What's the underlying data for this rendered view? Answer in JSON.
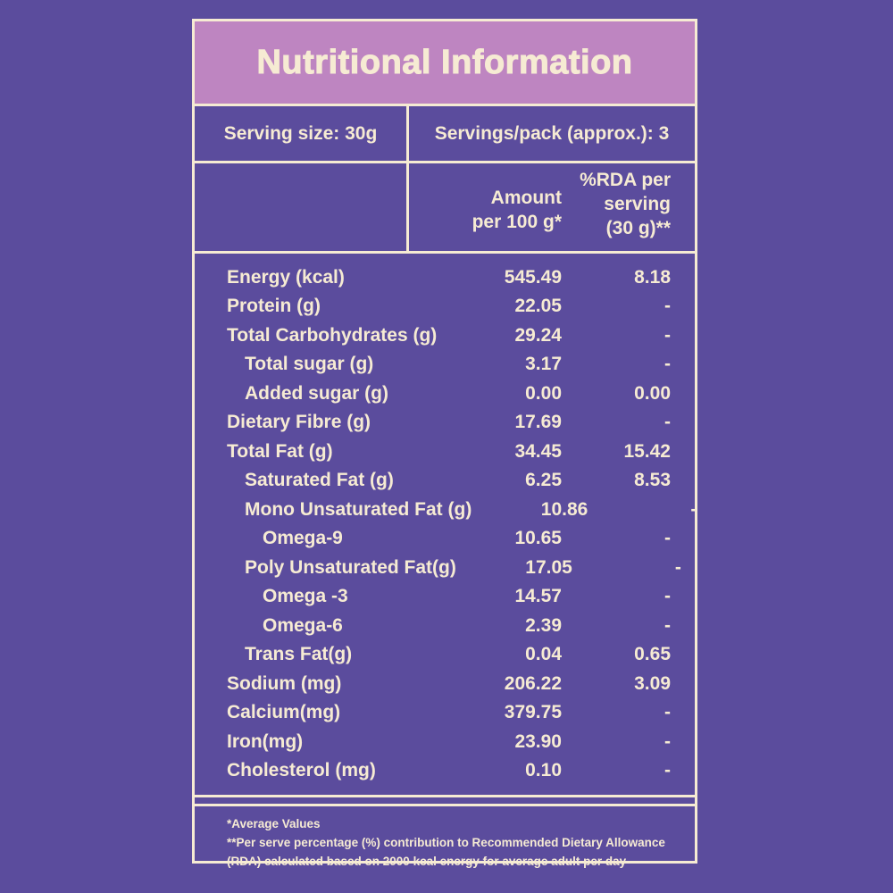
{
  "colors": {
    "background_purple": "#5B4C9D",
    "title_band_mauve": "#BE85C1",
    "text_cream": "#F6EBD3",
    "border_cream": "#F6EBD3"
  },
  "label": {
    "title": "Nutritional Information",
    "serving_size": "Serving size: 30g",
    "servings_per_pack": "Servings/pack (approx.): 3",
    "columns": {
      "amount_header": "Amount\nper 100 g*",
      "rda_header": "%RDA per\nserving\n(30 g)**"
    },
    "rows": [
      {
        "label": "Energy (kcal)",
        "indent": 0,
        "amount": "545.49",
        "rda": "8.18"
      },
      {
        "label": "Protein (g)",
        "indent": 0,
        "amount": "22.05",
        "rda": "-"
      },
      {
        "label": "Total Carbohydrates (g)",
        "indent": 0,
        "amount": "29.24",
        "rda": "-"
      },
      {
        "label": "Total sugar (g)",
        "indent": 1,
        "amount": "3.17",
        "rda": "-"
      },
      {
        "label": "Added sugar (g)",
        "indent": 1,
        "amount": "0.00",
        "rda": "0.00"
      },
      {
        "label": "Dietary Fibre (g)",
        "indent": 0,
        "amount": "17.69",
        "rda": "-"
      },
      {
        "label": "Total Fat (g)",
        "indent": 0,
        "amount": "34.45",
        "rda": "15.42"
      },
      {
        "label": "Saturated Fat (g)",
        "indent": 1,
        "amount": "6.25",
        "rda": "8.53"
      },
      {
        "label": "Mono Unsaturated Fat (g)",
        "indent": 1,
        "amount": "10.86",
        "rda": "-"
      },
      {
        "label": "Omega-9",
        "indent": 2,
        "amount": "10.65",
        "rda": "-"
      },
      {
        "label": "Poly Unsaturated Fat(g)",
        "indent": 1,
        "amount": "17.05",
        "rda": "-"
      },
      {
        "label": "Omega -3",
        "indent": 2,
        "amount": "14.57",
        "rda": "-"
      },
      {
        "label": "Omega-6",
        "indent": 2,
        "amount": "2.39",
        "rda": "-"
      },
      {
        "label": "Trans Fat(g)",
        "indent": 1,
        "amount": "0.04",
        "rda": "0.65"
      },
      {
        "label": "Sodium (mg)",
        "indent": 0,
        "amount": "206.22",
        "rda": "3.09"
      },
      {
        "label": "Calcium(mg)",
        "indent": 0,
        "amount": "379.75",
        "rda": "-"
      },
      {
        "label": "Iron(mg)",
        "indent": 0,
        "amount": "23.90",
        "rda": "-"
      },
      {
        "label": "Cholesterol (mg)",
        "indent": 0,
        "amount": "0.10",
        "rda": "-"
      }
    ],
    "footnotes": [
      "*Average Values",
      "**Per serve percentage (%) contribution to Recommended Dietary Allowance",
      "(RDA) calculated based on 2000 kcal energy for average adult per day"
    ]
  }
}
